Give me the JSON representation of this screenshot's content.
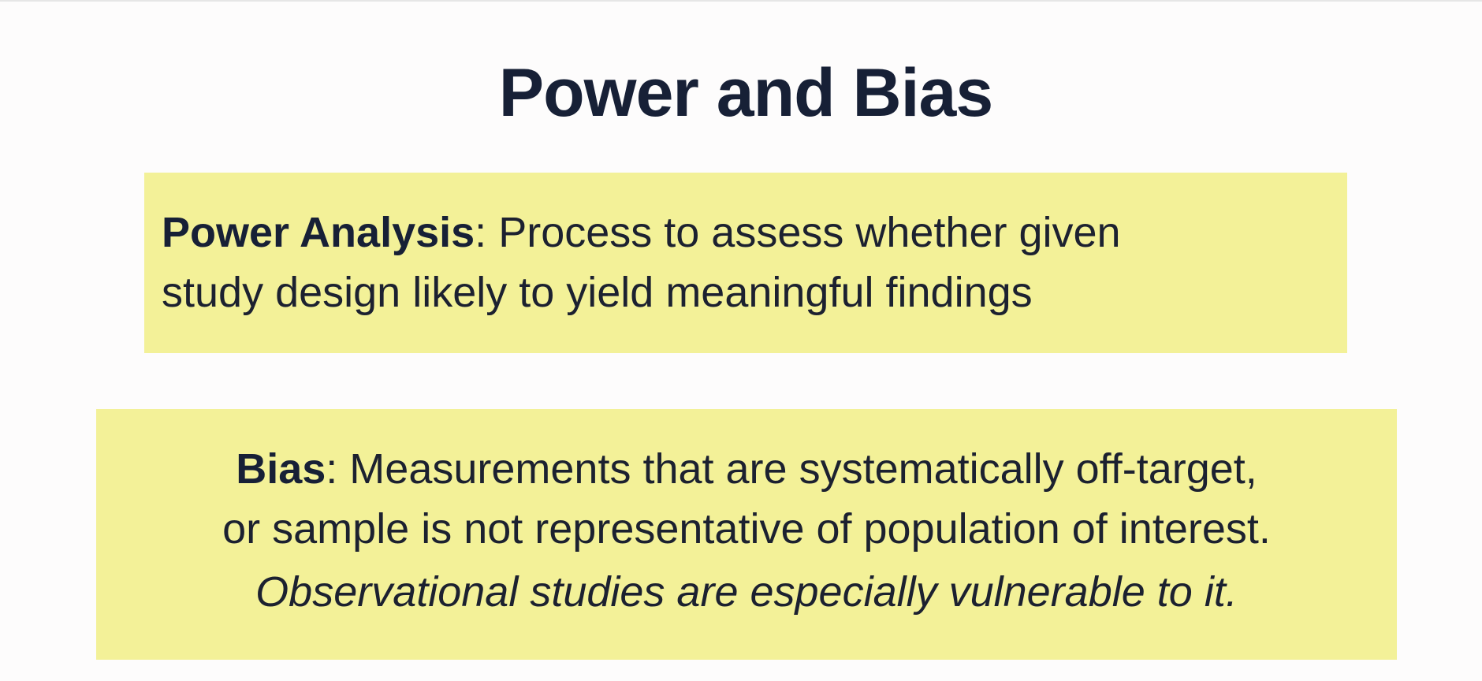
{
  "slide": {
    "title": "Power and Bias",
    "power_box": {
      "term": "Power Analysis",
      "separator": ":",
      "line1_rest": " Process to assess whether given",
      "line2": "study design likely to yield meaningful findings"
    },
    "bias_box": {
      "term": "Bias",
      "separator": ":",
      "line1_rest": " Measurements that are systematically off-target,",
      "line2": "or sample is not representative of population of interest.",
      "line3": "Observational studies are especially vulnerable to it."
    }
  },
  "colors": {
    "background": "#fdfcfc",
    "title": "#172036",
    "box_fill": "#f3f198",
    "text": "#1c2130"
  }
}
